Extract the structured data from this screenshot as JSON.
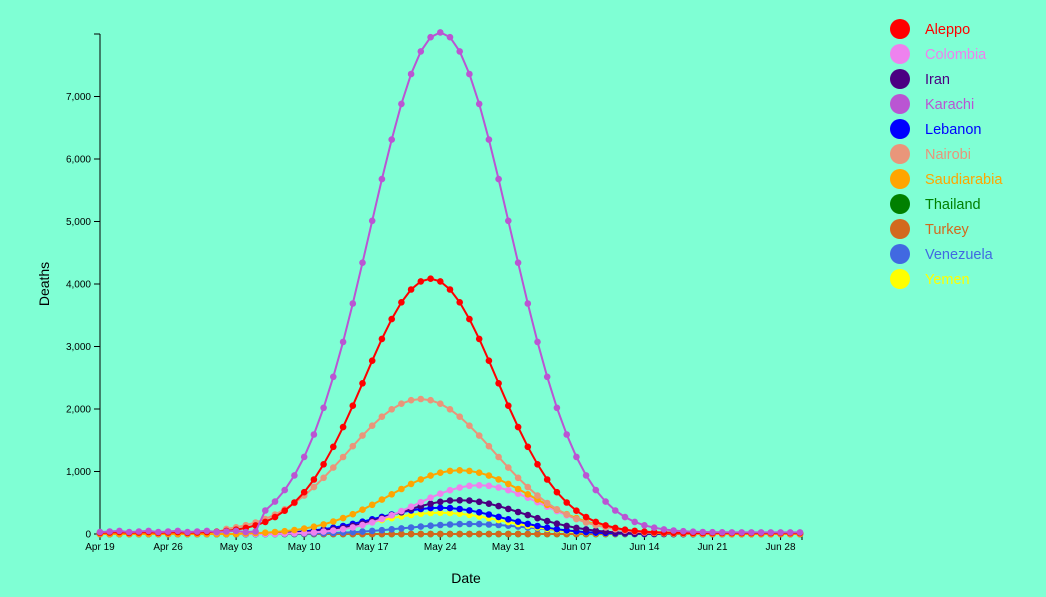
{
  "chart_data": {
    "type": "line",
    "xlabel": "Date",
    "ylabel": "Deaths",
    "ylim": [
      0,
      8000
    ],
    "y_ticks": [
      0,
      1000,
      2000,
      3000,
      4000,
      5000,
      6000,
      7000
    ],
    "y_tick_labels": [
      "0",
      "1,000",
      "2,000",
      "3,000",
      "4,000",
      "5,000",
      "6,000",
      "7,000"
    ],
    "x_range": [
      "Apr 19",
      "Jun 30"
    ],
    "x_ticks": [
      "Apr 19",
      "Apr 26",
      "May 03",
      "May 10",
      "May 17",
      "May 24",
      "May 31",
      "Jun 07",
      "Jun 14",
      "Jun 21",
      "Jun 28"
    ],
    "legend_position": "top-right",
    "grid": false,
    "series": [
      {
        "name": "Aleppo",
        "color": "#ff0000",
        "start": "May 01",
        "peak_date": "May 23",
        "peak": 4070,
        "width": 6.8,
        "base": 30
      },
      {
        "name": "Colombia",
        "color": "#ee82ee",
        "start": "May 08",
        "peak_date": "May 28",
        "peak": 780,
        "width": 6.5,
        "base": 0
      },
      {
        "name": "Iran",
        "color": "#4b0082",
        "start": "May 05",
        "peak_date": "May 26",
        "peak": 540,
        "width": 6.5,
        "base": 0
      },
      {
        "name": "Karachi",
        "color": "#ba55d3",
        "start": "May 06",
        "peak_date": "May 24",
        "peak": 8000,
        "width": 7.2,
        "base": 50
      },
      {
        "name": "Lebanon",
        "color": "#0000ff",
        "start": "May 06",
        "peak_date": "May 24",
        "peak": 420,
        "width": 6.5,
        "base": 0
      },
      {
        "name": "Nairobi",
        "color": "#e9967a",
        "start": "May 02",
        "peak_date": "May 22",
        "peak": 2140,
        "width": 7.5,
        "base": 40
      },
      {
        "name": "Saudiarabia",
        "color": "#ffa500",
        "start": "May 04",
        "peak_date": "May 26",
        "peak": 1020,
        "width": 7.2,
        "base": 0
      },
      {
        "name": "Thailand",
        "color": "#008000",
        "start": "Apr 19",
        "peak_date": "May 24",
        "peak": 0,
        "width": 6,
        "base": 0
      },
      {
        "name": "Turkey",
        "color": "#d2691e",
        "start": "Apr 19",
        "peak_date": "May 24",
        "peak": 0,
        "width": 6,
        "base": 0
      },
      {
        "name": "Venezuela",
        "color": "#4169e1",
        "start": "May 08",
        "peak_date": "May 27",
        "peak": 160,
        "width": 6.5,
        "base": 0
      },
      {
        "name": "Yemen",
        "color": "#ffff00",
        "start": "May 04",
        "peak_date": "May 24",
        "peak": 340,
        "width": 6.5,
        "base": 0
      }
    ]
  }
}
